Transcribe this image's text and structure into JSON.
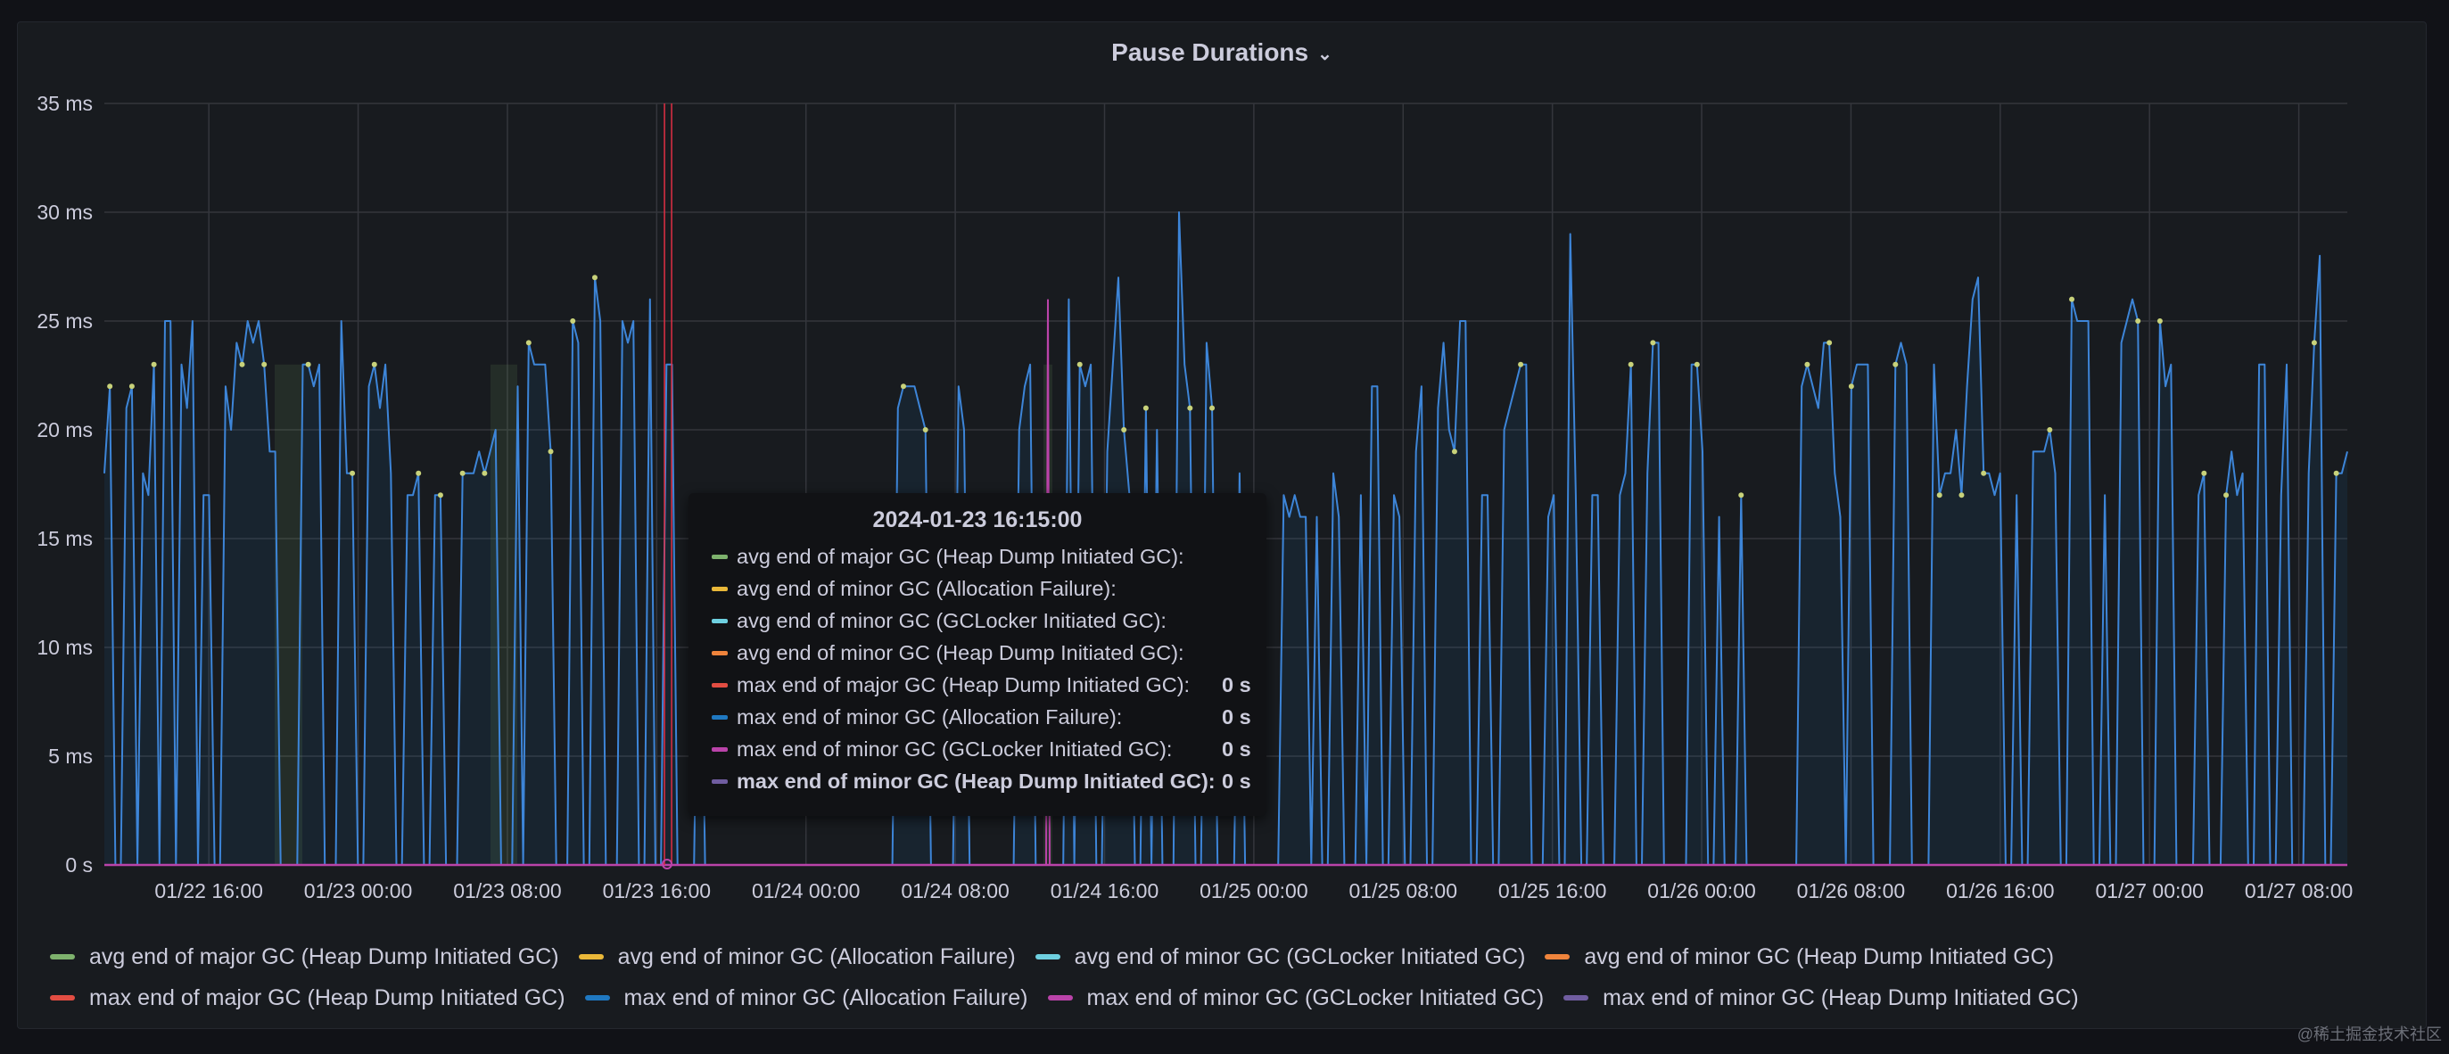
{
  "panel": {
    "title": "Pause Durations"
  },
  "colors": {
    "bg": "#111217",
    "panel": "#181b1f",
    "grid": "#34363c",
    "axis_text": "#ccccdc",
    "crosshair": "#e02f44"
  },
  "chart_data": {
    "type": "line",
    "title": "Pause Durations",
    "y_ticks": [
      "0 s",
      "5 ms",
      "10 ms",
      "15 ms",
      "20 ms",
      "25 ms",
      "30 ms",
      "35 ms"
    ],
    "ylim": [
      0,
      35
    ],
    "y_unit": "ms",
    "x_ticks": [
      "01/22 16:00",
      "01/23 00:00",
      "01/23 08:00",
      "01/23 16:00",
      "01/24 00:00",
      "01/24 08:00",
      "01/24 16:00",
      "01/25 00:00",
      "01/25 08:00",
      "01/25 16:00",
      "01/26 00:00",
      "01/26 08:00",
      "01/26 16:00",
      "01/27 00:00",
      "01/27 08:00"
    ],
    "xlim_hours": [
      0,
      120.2
    ],
    "x_tick_hours": [
      5.6,
      13.6,
      21.6,
      29.6,
      37.6,
      45.6,
      53.6,
      61.6,
      69.6,
      77.6,
      85.6,
      93.6,
      101.6,
      109.6,
      117.6
    ],
    "grid": true,
    "legend_position": "bottom",
    "series": [
      {
        "name": "avg end of major GC (Heap Dump Initiated GC)",
        "color": "#7eb26d"
      },
      {
        "name": "avg end of minor GC (Allocation Failure)",
        "color": "#eab839"
      },
      {
        "name": "avg end of minor GC (GCLocker Initiated GC)",
        "color": "#6ed0e0"
      },
      {
        "name": "avg end of minor GC (Heap Dump Initiated GC)",
        "color": "#ef843c"
      },
      {
        "name": "max end of major GC (Heap Dump Initiated GC)",
        "color": "#e24d42"
      },
      {
        "name": "max end of minor GC (Allocation Failure)",
        "color": "#1f78c1",
        "values_ms": [
          18,
          22,
          0,
          0,
          21,
          22,
          0,
          18,
          17,
          23,
          0,
          25,
          25,
          0,
          23,
          21,
          25,
          0,
          17,
          17,
          0,
          0,
          22,
          20,
          24,
          23,
          25,
          24,
          25,
          23,
          19,
          19,
          0,
          0,
          0,
          0,
          23,
          23,
          22,
          23,
          0,
          0,
          0,
          25,
          18,
          18,
          0,
          0,
          22,
          23,
          21,
          23,
          18,
          0,
          0,
          17,
          17,
          18,
          0,
          0,
          17,
          17,
          0,
          0,
          0,
          18,
          18,
          18,
          19,
          18,
          19,
          20,
          0,
          0,
          0,
          22,
          0,
          24,
          23,
          23,
          23,
          19,
          0,
          0,
          0,
          25,
          24,
          0,
          0,
          27,
          25,
          0,
          0,
          0,
          25,
          24,
          25,
          0,
          0,
          26,
          0,
          0,
          23,
          23,
          0,
          0,
          0,
          0,
          17,
          0,
          0,
          0,
          0,
          0,
          0,
          0,
          0,
          0,
          0,
          0,
          0,
          0,
          0,
          0,
          0,
          0,
          0,
          0,
          0,
          0,
          0,
          0,
          0,
          0,
          0,
          0,
          0,
          0,
          0,
          0,
          0,
          0,
          0,
          0,
          21,
          22,
          22,
          22,
          21,
          20,
          0,
          0,
          0,
          0,
          0,
          22,
          20,
          0,
          0,
          0,
          0,
          0,
          0,
          0,
          0,
          0,
          20,
          22,
          23,
          0,
          0,
          0,
          0,
          0,
          0,
          26,
          0,
          23,
          22,
          23,
          0,
          0,
          19,
          23,
          27,
          20,
          17,
          0,
          0,
          21,
          0,
          20,
          0,
          0,
          0,
          30,
          23,
          21,
          0,
          0,
          24,
          21,
          0,
          0,
          0,
          0,
          18,
          0,
          0,
          0,
          0,
          0,
          0,
          0,
          17,
          16,
          17,
          16,
          16,
          0,
          16,
          0,
          0,
          18,
          16,
          0,
          0,
          0,
          17,
          0,
          22,
          22,
          0,
          0,
          17,
          16,
          0,
          0,
          19,
          22,
          0,
          0,
          21,
          24,
          20,
          19,
          25,
          25,
          0,
          0,
          17,
          17,
          0,
          0,
          20,
          21,
          22,
          23,
          23,
          0,
          0,
          0,
          16,
          17,
          0,
          0,
          29,
          17,
          0,
          0,
          17,
          17,
          0,
          0,
          0,
          17,
          18,
          23,
          0,
          0,
          18,
          24,
          24,
          0,
          0,
          0,
          0,
          0,
          23,
          23,
          19,
          0,
          0,
          16,
          0,
          0,
          0,
          17,
          0,
          0,
          0,
          0,
          0,
          0,
          0,
          0,
          0,
          0,
          22,
          23,
          22,
          21,
          24,
          24,
          18,
          16,
          0,
          22,
          23,
          23,
          23,
          0,
          0,
          0,
          0,
          23,
          24,
          23,
          0,
          0,
          0,
          0,
          23,
          17,
          18,
          18,
          20,
          17,
          22,
          26,
          27,
          18,
          18,
          17,
          18,
          0,
          0,
          17,
          0,
          0,
          19,
          19,
          19,
          20,
          18,
          0,
          0,
          26,
          25,
          25,
          25,
          0,
          0,
          17,
          0,
          0,
          24,
          25,
          26,
          25,
          0,
          0,
          0,
          25,
          22,
          23,
          0,
          0,
          0,
          0,
          17,
          18,
          0,
          0,
          0,
          17,
          19,
          17,
          18,
          0,
          0,
          23,
          23,
          0,
          0,
          17,
          23,
          0,
          0,
          0,
          18,
          24,
          28,
          0,
          0,
          18,
          18,
          19
        ]
      },
      {
        "name": "max end of minor GC (GCLocker Initiated GC)",
        "color": "#ba43a9"
      },
      {
        "name": "max end of minor GC (Heap Dump Initiated GC)",
        "color": "#705da0"
      }
    ],
    "crosshair_hour": 30.4
  },
  "tooltip": {
    "title": "2024-01-23 16:15:00",
    "rows": [
      {
        "name": "avg end of major GC (Heap Dump Initiated GC):",
        "value": ""
      },
      {
        "name": "avg end of minor GC (Allocation Failure):",
        "value": ""
      },
      {
        "name": "avg end of minor GC (GCLocker Initiated GC):",
        "value": ""
      },
      {
        "name": "avg end of minor GC (Heap Dump Initiated GC):",
        "value": ""
      },
      {
        "name": "max end of major GC (Heap Dump Initiated GC):",
        "value": "0 s"
      },
      {
        "name": "max end of minor GC (Allocation Failure):",
        "value": "0 s"
      },
      {
        "name": "max end of minor GC (GCLocker Initiated GC):",
        "value": "0 s"
      },
      {
        "name": "max end of minor GC (Heap Dump Initiated GC):",
        "value": "0 s"
      }
    ]
  },
  "watermark": "@稀土掘金技术社区"
}
